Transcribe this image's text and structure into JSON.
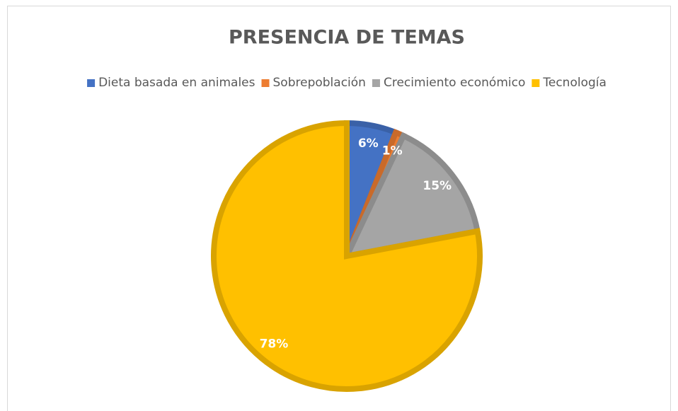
{
  "chart_data": {
    "type": "pie",
    "title": "PRESENCIA DE TEMAS",
    "categories": [
      "Dieta basada en animales",
      "Sobrepoblación",
      "Crecimiento económico",
      "Tecnología"
    ],
    "values": [
      6,
      1,
      15,
      78
    ],
    "value_labels": [
      "6%",
      "1%",
      "15%",
      "78%"
    ],
    "colors": [
      "#4472c4",
      "#ed7d31",
      "#a5a5a5",
      "#ffc000"
    ],
    "legend": "top"
  }
}
